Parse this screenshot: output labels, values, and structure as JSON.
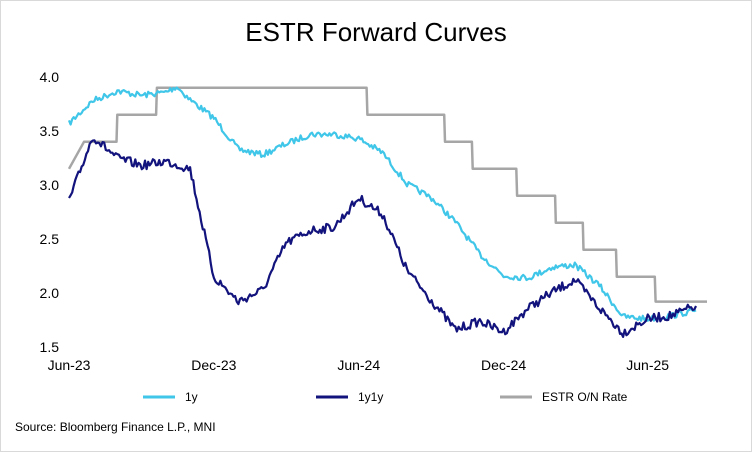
{
  "chart_data": {
    "type": "line",
    "title": "ESTR Forward Curves",
    "xlabel": "",
    "ylabel": "",
    "ylim": [
      1.5,
      4.0
    ],
    "y_ticks": [
      "4.0",
      "3.5",
      "3.0",
      "2.5",
      "2.0",
      "1.5"
    ],
    "x_tick_labels": [
      "Jun-23",
      "Dec-23",
      "Jun-24",
      "Dec-24",
      "Jun-25"
    ],
    "x_tick_dates": [
      "2023-06",
      "2023-12",
      "2024-06",
      "2024-12",
      "2025-06"
    ],
    "grid": false,
    "legend_position": "bottom",
    "series": [
      {
        "name": "1y",
        "color": "#3fc6e8",
        "x": [
          "2023-06",
          "2023-07",
          "2023-08",
          "2023-09",
          "2023-10",
          "2023-10-15",
          "2023-11",
          "2023-12",
          "2024-01",
          "2024-02",
          "2024-03",
          "2024-04",
          "2024-05",
          "2024-06",
          "2024-07",
          "2024-08",
          "2024-09",
          "2024-10",
          "2024-11",
          "2024-12",
          "2025-01",
          "2025-02",
          "2025-03",
          "2025-04",
          "2025-05",
          "2025-06",
          "2025-07",
          "2025-08"
        ],
        "values": [
          3.57,
          3.78,
          3.87,
          3.83,
          3.86,
          3.91,
          3.79,
          3.62,
          3.33,
          3.28,
          3.38,
          3.47,
          3.47,
          3.43,
          3.3,
          3.01,
          2.88,
          2.66,
          2.36,
          2.16,
          2.14,
          2.24,
          2.26,
          2.07,
          1.78,
          1.76,
          1.79,
          1.84
        ]
      },
      {
        "name": "1y1y",
        "color": "#13137d",
        "x": [
          "2023-06",
          "2023-07",
          "2023-08",
          "2023-09",
          "2023-10",
          "2023-11",
          "2023-12",
          "2024-01",
          "2024-02",
          "2024-03",
          "2024-04",
          "2024-05",
          "2024-06",
          "2024-07",
          "2024-08",
          "2024-09",
          "2024-10",
          "2024-11",
          "2024-12",
          "2025-01",
          "2025-02",
          "2025-03",
          "2025-04",
          "2025-05",
          "2025-06",
          "2025-07",
          "2025-08"
        ],
        "values": [
          2.85,
          3.45,
          3.25,
          3.18,
          3.22,
          3.15,
          2.15,
          1.92,
          2.03,
          2.46,
          2.58,
          2.61,
          2.88,
          2.73,
          2.21,
          1.93,
          1.66,
          1.74,
          1.64,
          1.86,
          2.01,
          2.12,
          1.86,
          1.63,
          1.76,
          1.79,
          1.88
        ]
      },
      {
        "name": "ESTR O/N Rate",
        "color": "#a6a6a6",
        "x": [
          "2023-06",
          "2023-06-20",
          "2023-07-31",
          "2023-08-01",
          "2023-09-19",
          "2023-09-20",
          "2024-06-11",
          "2024-06-12",
          "2024-09-17",
          "2024-09-18",
          "2024-10-22",
          "2024-10-23",
          "2024-12-17",
          "2024-12-18",
          "2025-02-04",
          "2025-02-05",
          "2025-03-11",
          "2025-03-12",
          "2025-04-22",
          "2025-04-23",
          "2025-06-10",
          "2025-06-11",
          "2025-08-15"
        ],
        "values": [
          3.15,
          3.4,
          3.4,
          3.65,
          3.65,
          3.9,
          3.9,
          3.65,
          3.65,
          3.4,
          3.4,
          3.15,
          3.15,
          2.9,
          2.9,
          2.65,
          2.65,
          2.4,
          2.4,
          2.15,
          2.15,
          1.92,
          1.92
        ]
      }
    ],
    "source": "Source: Bloomberg Finance L.P., MNI"
  }
}
